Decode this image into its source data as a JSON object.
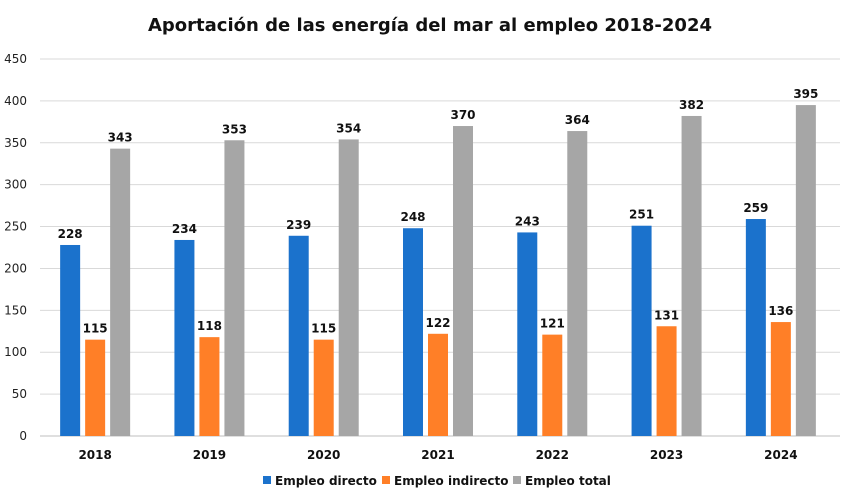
{
  "chart_data": {
    "type": "bar",
    "title": "Aportación de las energía del mar al empleo 2018-2024",
    "xlabel": "",
    "ylabel": "",
    "categories": [
      "2018",
      "2019",
      "2020",
      "2021",
      "2022",
      "2023",
      "2024"
    ],
    "series": [
      {
        "name": "Empleo directo",
        "color": "#1B72CC",
        "values": [
          228,
          234,
          239,
          248,
          243,
          251,
          259
        ]
      },
      {
        "name": "Empleo indirecto",
        "color": "#FF7F27",
        "values": [
          115,
          118,
          115,
          122,
          121,
          131,
          136
        ]
      },
      {
        "name": "Empleo total",
        "color": "#A6A6A6",
        "values": [
          343,
          353,
          354,
          370,
          364,
          382,
          395
        ]
      }
    ],
    "ylim": [
      0,
      450
    ],
    "yticks": [
      0,
      50,
      100,
      150,
      200,
      250,
      300,
      350,
      400,
      450
    ],
    "grid": true,
    "data_labels": true,
    "legend_position": "bottom"
  }
}
